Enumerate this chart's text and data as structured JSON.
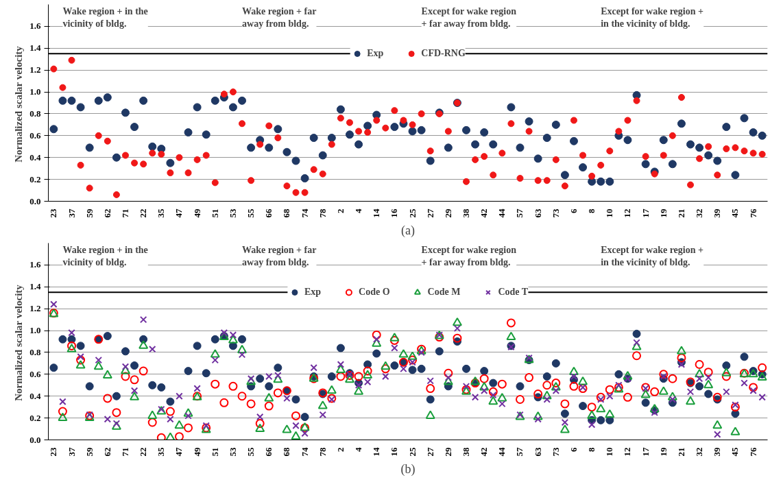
{
  "chart_data": [
    {
      "type": "scatter",
      "ylabel": "Normalized  scalar velocity",
      "grid": "y",
      "legend": "top",
      "annotations": [
        "Wake region + in the vicinity of bldg.",
        "Wake region + far away from bldg.",
        "Except for wake region + far away from bldg.",
        "Except for wake region + in the vicinity of bldg.",
        "(a)"
      ],
      "ref_lines": [
        {
          "axis": "y",
          "value": 1.35,
          "label": null,
          "color": "#000000"
        }
      ],
      "ylim": [
        0,
        1.8
      ],
      "yticks": [
        {
          "value": 0,
          "label": "0.0"
        },
        {
          "value": 0.2,
          "label": "0.2"
        },
        {
          "value": 0.4,
          "label": "0.4"
        },
        {
          "value": 0.6,
          "label": "0.6"
        },
        {
          "value": 0.8,
          "label": "0.8"
        },
        {
          "value": 1,
          "label": "1.0"
        },
        {
          "value": 1.2,
          "label": "1.2"
        },
        {
          "value": 1.4,
          "label": "1.4"
        },
        {
          "value": 1.6,
          "label": "1.6"
        }
      ],
      "categories": [
        "23",
        null,
        "37",
        null,
        "59",
        null,
        "62",
        null,
        "71",
        null,
        "22",
        null,
        "35",
        null,
        "47",
        null,
        "49",
        null,
        "51",
        null,
        "53",
        null,
        "55",
        null,
        "66",
        null,
        "68",
        null,
        "74",
        null,
        "78",
        null,
        "2",
        null,
        "4",
        null,
        "14",
        null,
        "16",
        null,
        "25",
        null,
        "27",
        null,
        "29",
        null,
        "38",
        null,
        "42",
        null,
        "44",
        null,
        "57",
        null,
        "63",
        null,
        "73",
        null,
        "6",
        null,
        "8",
        null,
        "10",
        null,
        "12",
        null,
        "17",
        null,
        "19",
        null,
        "21",
        null,
        "32",
        null,
        "39",
        null,
        "45",
        null,
        "76",
        null
      ],
      "series": [
        {
          "name": "Exp",
          "color": "#1f3864",
          "marker": "circle",
          "values": [
            0.66,
            0.92,
            0.92,
            0.86,
            0.49,
            0.92,
            0.95,
            0.4,
            0.81,
            0.68,
            0.92,
            0.5,
            0.48,
            0.35,
            null,
            0.63,
            0.86,
            0.61,
            0.92,
            0.95,
            0.86,
            0.92,
            0.49,
            0.56,
            0.49,
            0.66,
            0.45,
            0.37,
            0.21,
            0.58,
            0.42,
            0.58,
            0.84,
            0.61,
            0.52,
            0.69,
            0.79,
            null,
            0.68,
            0.71,
            0.64,
            0.65,
            0.37,
            0.81,
            0.49,
            0.9,
            0.65,
            0.52,
            0.63,
            0.52,
            null,
            0.86,
            0.49,
            0.73,
            0.39,
            0.58,
            0.7,
            0.24,
            0.55,
            0.31,
            0.18,
            0.18,
            0.18,
            0.6,
            0.56,
            0.97,
            0.34,
            0.27,
            0.56,
            0.34,
            0.71,
            0.52,
            0.49,
            0.42,
            0.37,
            0.68,
            0.24,
            0.76,
            0.63,
            0.6
          ]
        },
        {
          "name": "CFD-RNG",
          "color": "#f01818",
          "marker": "circle",
          "values": [
            1.21,
            1.04,
            1.29,
            0.33,
            0.12,
            0.6,
            0.55,
            0.06,
            0.42,
            0.35,
            0.34,
            0.44,
            0.43,
            0.26,
            0.4,
            0.26,
            0.38,
            0.42,
            0.17,
            0.98,
            1.0,
            0.71,
            0.19,
            0.52,
            0.69,
            0.58,
            0.14,
            0.08,
            0.08,
            0.29,
            0.25,
            0.52,
            0.76,
            0.72,
            0.64,
            0.63,
            0.74,
            0.67,
            0.83,
            0.74,
            0.7,
            0.8,
            0.46,
            0.8,
            0.64,
            0.9,
            0.18,
            0.38,
            0.41,
            0.24,
            0.44,
            0.71,
            0.21,
            0.64,
            0.19,
            0.19,
            0.38,
            0.14,
            0.74,
            0.42,
            0.23,
            0.33,
            0.46,
            0.64,
            0.74,
            0.92,
            0.41,
            0.25,
            0.42,
            0.6,
            0.95,
            0.15,
            0.39,
            0.5,
            0.24,
            0.48,
            0.49,
            0.46,
            0.44,
            0.43
          ]
        }
      ]
    },
    {
      "type": "scatter",
      "ylabel": "Normalized  scalar velocity",
      "grid": "y",
      "legend": "top",
      "annotations": [
        "Wake region + in the vicinity of bldg.",
        "Wake region + far away from bldg.",
        "Except for wake region + far away from bldg.",
        "Except for wake region + in the vicinity of bldg.",
        "(b)"
      ],
      "ref_lines": [
        {
          "axis": "y",
          "value": 1.35,
          "label": null,
          "color": "#000000"
        }
      ],
      "ylim": [
        0,
        1.8
      ],
      "yticks": [
        {
          "value": 0,
          "label": "0.0"
        },
        {
          "value": 0.2,
          "label": "0.2"
        },
        {
          "value": 0.4,
          "label": "0.4"
        },
        {
          "value": 0.6,
          "label": "0.6"
        },
        {
          "value": 0.8,
          "label": "0.8"
        },
        {
          "value": 1,
          "label": "1.0"
        },
        {
          "value": 1.2,
          "label": "1.2"
        },
        {
          "value": 1.4,
          "label": "1.4"
        },
        {
          "value": 1.6,
          "label": "1.6"
        }
      ],
      "categories": [
        "23",
        null,
        "37",
        null,
        "59",
        null,
        "62",
        null,
        "71",
        null,
        "22",
        null,
        "35",
        null,
        "47",
        null,
        "49",
        null,
        "51",
        null,
        "53",
        null,
        "55",
        null,
        "66",
        null,
        "68",
        null,
        "74",
        null,
        "78",
        null,
        "2",
        null,
        "4",
        null,
        "14",
        null,
        "16",
        null,
        "25",
        null,
        "27",
        null,
        "29",
        null,
        "38",
        null,
        "42",
        null,
        "44",
        null,
        "57",
        null,
        "63",
        null,
        "73",
        null,
        "6",
        null,
        "8",
        null,
        "10",
        null,
        "12",
        null,
        "17",
        null,
        "19",
        null,
        "21",
        null,
        "32",
        null,
        "39",
        null,
        "45",
        null,
        "76",
        null
      ],
      "series": [
        {
          "name": "Exp",
          "color": "#1f3864",
          "marker": "circle",
          "values": [
            0.66,
            0.92,
            0.92,
            0.86,
            0.49,
            0.92,
            0.95,
            0.4,
            0.81,
            0.68,
            0.92,
            0.5,
            0.48,
            0.35,
            null,
            0.63,
            0.86,
            0.61,
            0.92,
            0.95,
            0.86,
            0.92,
            0.49,
            0.56,
            0.49,
            0.66,
            0.45,
            0.37,
            0.21,
            0.58,
            0.42,
            0.58,
            0.84,
            0.61,
            0.52,
            0.69,
            0.79,
            null,
            0.68,
            0.71,
            0.64,
            0.65,
            0.37,
            0.81,
            0.49,
            0.9,
            0.65,
            0.52,
            0.63,
            0.52,
            null,
            0.86,
            0.49,
            0.73,
            0.39,
            0.58,
            0.7,
            0.24,
            0.55,
            0.31,
            0.18,
            0.18,
            0.18,
            0.6,
            0.56,
            0.97,
            0.34,
            0.27,
            0.56,
            0.34,
            0.71,
            0.52,
            0.49,
            0.42,
            0.37,
            0.68,
            0.24,
            0.76,
            0.63,
            0.6
          ]
        },
        {
          "name": "Code O",
          "color": "#ff0000",
          "marker": "circle_open",
          "values": [
            1.16,
            0.26,
            0.86,
            0.73,
            0.22,
            0.92,
            0.38,
            0.25,
            0.58,
            0.55,
            0.63,
            0.16,
            0.02,
            0.26,
            0.03,
            0.11,
            0.4,
            0.11,
            0.51,
            0.34,
            0.49,
            0.4,
            0.33,
            0.15,
            0.31,
            0.43,
            0.45,
            0.22,
            0.11,
            0.56,
            0.43,
            0.38,
            0.58,
            0.59,
            0.58,
            0.63,
            0.96,
            0.65,
            0.91,
            0.71,
            0.73,
            0.83,
            0.47,
            0.94,
            0.61,
            0.93,
            0.46,
            0.52,
            0.56,
            0.44,
            0.51,
            1.07,
            0.37,
            0.57,
            0.42,
            0.5,
            0.52,
            0.33,
            0.49,
            0.47,
            0.3,
            0.39,
            0.46,
            0.48,
            0.39,
            0.77,
            0.48,
            0.44,
            0.6,
            0.56,
            0.75,
            0.53,
            0.69,
            0.62,
            0.39,
            0.58,
            0.3,
            0.61,
            0.48,
            0.66
          ]
        },
        {
          "name": "Code M",
          "color": "#1a9e3c",
          "marker": "triangle",
          "values": [
            1.15,
            0.2,
            0.83,
            0.68,
            0.2,
            0.67,
            0.59,
            0.12,
            0.63,
            0.39,
            0.86,
            0.22,
            0.26,
            0.02,
            0.13,
            0.24,
            0.39,
            0.09,
            0.78,
            0.94,
            0.91,
            0.82,
            0.53,
            0.1,
            0.38,
            0.55,
            0.09,
            0.03,
            0.11,
            0.56,
            0.31,
            0.45,
            0.64,
            0.55,
            0.44,
            0.59,
            0.88,
            0.67,
            0.93,
            0.78,
            0.76,
            0.81,
            0.22,
            0.95,
            0.53,
            1.07,
            0.44,
            0.53,
            0.48,
            0.35,
            0.38,
            0.94,
            0.21,
            0.73,
            0.21,
            0.4,
            0.48,
            0.09,
            0.62,
            0.53,
            0.22,
            0.28,
            0.23,
            0.46,
            0.58,
            0.85,
            0.41,
            0.28,
            0.44,
            0.39,
            0.81,
            0.35,
            0.6,
            0.5,
            0.13,
            0.61,
            0.07,
            0.6,
            0.6,
            0.57
          ]
        },
        {
          "name": "Code T",
          "color": "#7030a0",
          "marker": "cross",
          "values": [
            1.24,
            0.35,
            0.98,
            0.76,
            0.23,
            0.73,
            0.19,
            0.15,
            0.67,
            0.45,
            1.1,
            0.83,
            0.28,
            0.19,
            0.4,
            0.22,
            0.47,
            0.13,
            0.73,
            0.98,
            0.96,
            0.78,
            0.56,
            0.21,
            0.58,
            0.59,
            0.38,
            0.13,
            0.06,
            0.66,
            0.23,
            0.37,
            0.69,
            0.6,
            0.5,
            0.53,
            0.92,
            0.58,
            0.84,
            0.65,
            0.71,
            0.8,
            0.54,
            0.96,
            0.57,
            1.02,
            0.49,
            0.39,
            0.45,
            0.41,
            0.33,
            0.85,
            0.23,
            0.75,
            0.19,
            0.37,
            0.45,
            0.16,
            0.58,
            0.48,
            0.14,
            0.37,
            0.4,
            0.5,
            0.56,
            0.89,
            0.47,
            0.25,
            0.58,
            0.37,
            0.69,
            0.44,
            0.56,
            0.57,
            0.05,
            0.44,
            0.32,
            0.52,
            0.45,
            0.39
          ]
        }
      ]
    }
  ]
}
